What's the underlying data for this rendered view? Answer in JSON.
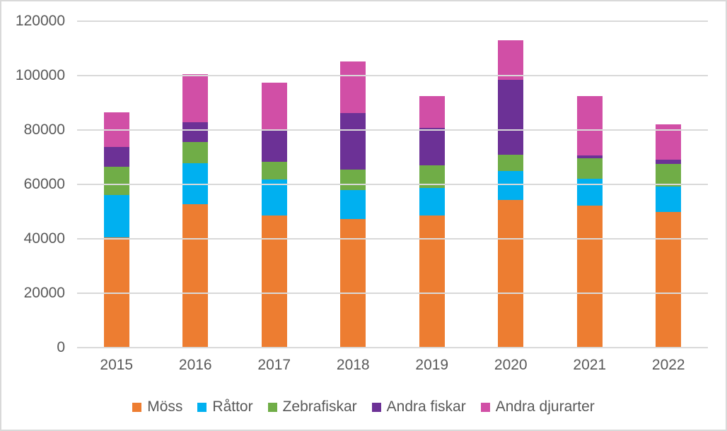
{
  "chart_data": {
    "type": "bar",
    "stacked": true,
    "title": "",
    "xlabel": "",
    "ylabel": "",
    "categories": [
      "2015",
      "2016",
      "2017",
      "2018",
      "2019",
      "2020",
      "2021",
      "2022"
    ],
    "series": [
      {
        "name": "Möss",
        "color": "#ED7D31",
        "values": [
          40500,
          52800,
          48500,
          47400,
          48500,
          54300,
          52200,
          49800
        ]
      },
      {
        "name": "Råttor",
        "color": "#00B0F0",
        "values": [
          15600,
          14900,
          13400,
          10600,
          10100,
          10700,
          9900,
          9300
        ]
      },
      {
        "name": "Zebrafiskar",
        "color": "#70AD47",
        "values": [
          10400,
          7800,
          6500,
          7400,
          8500,
          5800,
          7600,
          8500
        ]
      },
      {
        "name": "Andra fiskar",
        "color": "#6C3196",
        "values": [
          7400,
          7400,
          11400,
          20800,
          13600,
          27700,
          900,
          1600
        ]
      },
      {
        "name": "Andra djurarter",
        "color": "#D14FA6",
        "values": [
          12500,
          17600,
          17600,
          19100,
          11800,
          14600,
          21800,
          12900
        ]
      }
    ],
    "ylim": [
      0,
      120000
    ],
    "ytick_step": 20000,
    "ytick_labels": [
      "0",
      "20000",
      "40000",
      "60000",
      "80000",
      "100000",
      "120000"
    ],
    "grid": true,
    "legend_position": "bottom"
  },
  "styles": {
    "grid_color": "#D9D9D9",
    "border_color": "#D9D9D9",
    "axis_text_color": "#595959",
    "background": "#FFFFFF"
  }
}
